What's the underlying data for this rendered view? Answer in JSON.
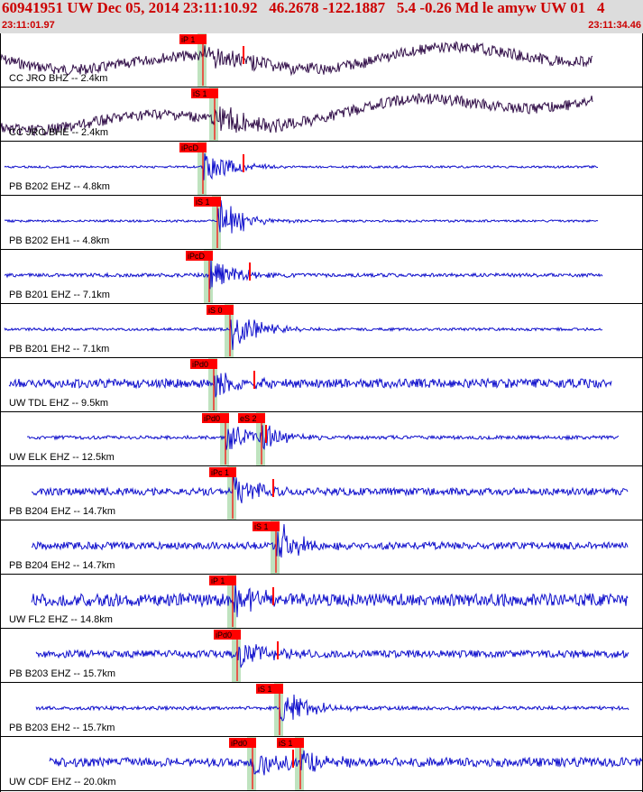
{
  "header": {
    "title": "60941951 UW Dec 05, 2014 23:11:10.92   46.2678 -122.1887   5.4 -0.26 Md le amyw UW 01   4",
    "start_time": "23:11:01.97",
    "end_time": "23:11:34.46"
  },
  "colors": {
    "header_bg": "#dcdcdc",
    "header_text": "#cc0000",
    "trace_seis": "#1010cc",
    "trace_broadband": "#33104a",
    "pick": "#ff0000",
    "window": "#bfe3bf"
  },
  "traces": [
    {
      "label": "CC JRO BHZ -- 2.4km",
      "type": "broadband",
      "phase": "P",
      "picks": [
        "iP 1"
      ]
    },
    {
      "label": "CC JRO BHE -- 2.4km",
      "type": "broadband",
      "phase": "S",
      "picks": [
        "iS 1"
      ]
    },
    {
      "label": "PB B202 EHZ -- 4.8km",
      "type": "seis",
      "phase": "P",
      "picks": [
        "iPcD"
      ]
    },
    {
      "label": "PB B202 EH1 -- 4.8km",
      "type": "seis",
      "phase": "S",
      "picks": [
        "iS 1"
      ]
    },
    {
      "label": "PB B201 EHZ -- 7.1km",
      "type": "seis",
      "phase": "P",
      "picks": [
        "iPcD"
      ]
    },
    {
      "label": "PB B201 EH2 -- 7.1km",
      "type": "seis",
      "phase": "S",
      "picks": [
        "iS 0"
      ]
    },
    {
      "label": "UW TDL EHZ -- 9.5km",
      "type": "seis",
      "phase": "P",
      "picks": [
        "iPd0"
      ]
    },
    {
      "label": "UW ELK EHZ -- 12.5km",
      "type": "seis",
      "phase": "PS",
      "picks": [
        "iPd0",
        "eS 2"
      ]
    },
    {
      "label": "PB B204 EHZ -- 14.7km",
      "type": "seis",
      "phase": "P",
      "picks": [
        "iPc 1"
      ]
    },
    {
      "label": "PB B204 EH2 -- 14.7km",
      "type": "seis",
      "phase": "S",
      "picks": [
        "iS 1"
      ]
    },
    {
      "label": "UW FL2 EHZ -- 14.8km",
      "type": "seis",
      "phase": "P",
      "picks": [
        "iP 1"
      ]
    },
    {
      "label": "PB B203 EHZ -- 15.7km",
      "type": "seis",
      "phase": "P",
      "picks": [
        "iPd0"
      ]
    },
    {
      "label": "PB B203 EH2 -- 15.7km",
      "type": "seis",
      "phase": "S",
      "picks": [
        "iS 1"
      ]
    },
    {
      "label": "UW CDF EHZ -- 20.0km",
      "type": "seis",
      "phase": "PS",
      "picks": [
        "iPd0",
        "iS 1"
      ]
    }
  ]
}
